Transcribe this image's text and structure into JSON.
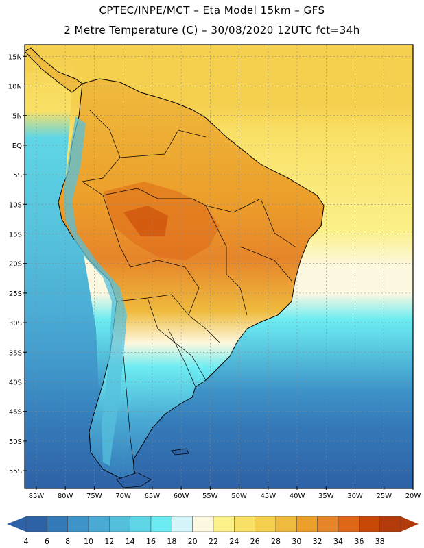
{
  "header": {
    "title_line1": "CPTEC/INPE/MCT  –   Eta Model 15km  –  GFS",
    "title_line2": "2 Metre Temperature (C)  –  30/08/2020 12UTC fct=34h"
  },
  "map": {
    "lat_labels": [
      "15N",
      "10N",
      "5N",
      "EQ",
      "5S",
      "10S",
      "15S",
      "20S",
      "25S",
      "30S",
      "35S",
      "40S",
      "45S",
      "50S",
      "55S"
    ],
    "lon_labels": [
      "85W",
      "80W",
      "75W",
      "70W",
      "65W",
      "60W",
      "55W",
      "50W",
      "45W",
      "40W",
      "35W",
      "30W",
      "25W",
      "20W"
    ],
    "lat_values": [
      15,
      10,
      5,
      0,
      -5,
      -10,
      -15,
      -20,
      -25,
      -30,
      -35,
      -40,
      -45,
      -50,
      -55
    ],
    "lon_values": [
      -85,
      -80,
      -75,
      -70,
      -65,
      -60,
      -55,
      -50,
      -45,
      -40,
      -35,
      -30,
      -25,
      -20
    ],
    "lat_range": [
      -58,
      17
    ],
    "lon_range": [
      -87,
      -20
    ]
  },
  "colorbar": {
    "labels": [
      "4",
      "6",
      "8",
      "10",
      "12",
      "14",
      "16",
      "18",
      "20",
      "22",
      "24",
      "26",
      "28",
      "30",
      "32",
      "34",
      "36",
      "38"
    ],
    "colors": [
      "#2e62a6",
      "#3479b8",
      "#3e93c8",
      "#4aaad4",
      "#55c0dc",
      "#5fd6e6",
      "#6cecf2",
      "#d4f6fb",
      "#fdf8e0",
      "#fbf08a",
      "#f9e066",
      "#f5cf4e",
      "#efbb3e",
      "#ec9f2a",
      "#e6852a",
      "#de6718",
      "#c84808",
      "#b33a0a"
    ],
    "low_arrow_color": "#2e62a6",
    "high_arrow_color": "#b33a0a"
  },
  "colors": {
    "ocean_north": "#f5cf4e",
    "ocean_tropic": "#f9e066",
    "ocean_subtropic": "#fdf8e0",
    "ocean_mid": "#55c0dc",
    "ocean_cold": "#3e93c8",
    "ocean_south": "#2e62a6",
    "land_hot": "#ec9f2a",
    "land_warm": "#efbb3e",
    "land_core": "#e6852a"
  }
}
